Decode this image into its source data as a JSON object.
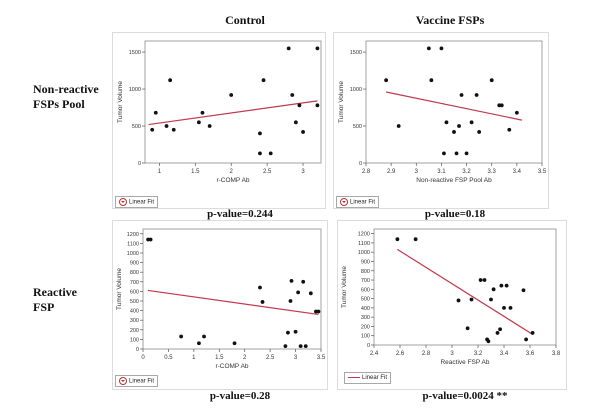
{
  "headers": {
    "col_control": "Control",
    "col_vaccine": "Vaccine FSPs",
    "row_nonreactive_line1": "Non-reactive",
    "row_nonreactive_line2": "FSPs Pool",
    "row_reactive_line1": "Reactive",
    "row_reactive_line2": "FSP"
  },
  "legend_label": "Linear Fit",
  "colors": {
    "fit_line": "#c0394b",
    "points": "#111111",
    "axis": "#555555"
  },
  "chart_data": [
    {
      "id": "tl",
      "type": "scatter",
      "xlabel": "r-COMP Ab",
      "ylabel": "Tumor Volume",
      "xlim": [
        0.8,
        3.25
      ],
      "ylim": [
        0,
        1650
      ],
      "xticks": [
        1,
        1.5,
        2,
        2.5,
        3
      ],
      "xtick_labels": [
        "1",
        "1.5",
        "2",
        "2.5",
        "3"
      ],
      "yticks": [
        0,
        500,
        1000,
        1500
      ],
      "ytick_labels": [
        "0",
        "500",
        "1000",
        "1500"
      ],
      "points": [
        [
          0.9,
          450
        ],
        [
          0.95,
          680
        ],
        [
          1.1,
          500
        ],
        [
          1.15,
          1120
        ],
        [
          1.2,
          450
        ],
        [
          1.55,
          550
        ],
        [
          1.6,
          680
        ],
        [
          1.7,
          500
        ],
        [
          2.0,
          920
        ],
        [
          2.4,
          400
        ],
        [
          2.4,
          130
        ],
        [
          2.45,
          1120
        ],
        [
          2.55,
          130
        ],
        [
          2.8,
          1550
        ],
        [
          2.85,
          920
        ],
        [
          2.9,
          550
        ],
        [
          2.95,
          780
        ],
        [
          3.0,
          420
        ],
        [
          3.2,
          1550
        ],
        [
          3.2,
          780
        ]
      ],
      "fit": [
        [
          0.85,
          520
        ],
        [
          3.2,
          840
        ]
      ],
      "pvalue": "p-value=0.244",
      "grid": false
    },
    {
      "id": "tr",
      "type": "scatter",
      "xlabel": "Non-reactive FSP Pool Ab",
      "ylabel": "Tumor Volume",
      "xlim": [
        2.8,
        3.5
      ],
      "ylim": [
        0,
        1650
      ],
      "xticks": [
        2.8,
        2.9,
        3,
        3.1,
        3.2,
        3.3,
        3.4,
        3.5
      ],
      "xtick_labels": [
        "2.8",
        "2.9",
        "3",
        "3.1",
        "3.2",
        "3.3",
        "3.4",
        "3.5"
      ],
      "yticks": [
        0,
        500,
        1000,
        1500
      ],
      "ytick_labels": [
        "0",
        "500",
        "1000",
        "1500"
      ],
      "points": [
        [
          2.88,
          1120
        ],
        [
          2.93,
          500
        ],
        [
          3.05,
          1550
        ],
        [
          3.06,
          1120
        ],
        [
          3.1,
          1550
        ],
        [
          3.11,
          130
        ],
        [
          3.12,
          550
        ],
        [
          3.15,
          420
        ],
        [
          3.16,
          130
        ],
        [
          3.17,
          500
        ],
        [
          3.18,
          920
        ],
        [
          3.2,
          130
        ],
        [
          3.22,
          550
        ],
        [
          3.24,
          920
        ],
        [
          3.25,
          420
        ],
        [
          3.3,
          1120
        ],
        [
          3.33,
          780
        ],
        [
          3.34,
          780
        ],
        [
          3.37,
          450
        ],
        [
          3.4,
          680
        ]
      ],
      "fit": [
        [
          2.88,
          960
        ],
        [
          3.42,
          580
        ]
      ],
      "pvalue": "p-value=0.18",
      "grid": false
    },
    {
      "id": "bl",
      "type": "scatter",
      "xlabel": "r-COMP Ab",
      "ylabel": "Tumor Volume",
      "xlim": [
        0,
        3.5
      ],
      "ylim": [
        0,
        1250
      ],
      "xticks": [
        0,
        0.5,
        1,
        1.5,
        2,
        2.5,
        3,
        3.5
      ],
      "xtick_labels": [
        "0",
        "0.5",
        "1",
        "1.5",
        "2",
        "2.5",
        "3",
        "3.5"
      ],
      "yticks": [
        0,
        100,
        200,
        300,
        400,
        500,
        600,
        700,
        800,
        900,
        1000,
        1100,
        1200
      ],
      "ytick_labels": [
        "0",
        "100",
        "200",
        "300",
        "400",
        "500",
        "600",
        "700",
        "800",
        "900",
        "1000",
        "1100",
        "1200"
      ],
      "points": [
        [
          0.1,
          1140
        ],
        [
          0.15,
          1140
        ],
        [
          0.75,
          130
        ],
        [
          1.1,
          60
        ],
        [
          1.2,
          130
        ],
        [
          1.8,
          60
        ],
        [
          2.3,
          640
        ],
        [
          2.35,
          490
        ],
        [
          2.8,
          30
        ],
        [
          2.85,
          170
        ],
        [
          2.9,
          500
        ],
        [
          2.92,
          710
        ],
        [
          3.0,
          180
        ],
        [
          3.05,
          590
        ],
        [
          3.1,
          30
        ],
        [
          3.15,
          700
        ],
        [
          3.2,
          30
        ],
        [
          3.3,
          580
        ],
        [
          3.4,
          390
        ],
        [
          3.45,
          390
        ]
      ],
      "fit": [
        [
          0.1,
          610
        ],
        [
          3.45,
          360
        ]
      ],
      "pvalue": "p-value=0.28",
      "grid": false
    },
    {
      "id": "br",
      "type": "scatter",
      "xlabel": "Reactive FSP Ab",
      "ylabel": "Tumor Volume",
      "xlim": [
        2.4,
        3.8
      ],
      "ylim": [
        0,
        1250
      ],
      "xticks": [
        2.4,
        2.6,
        2.8,
        3,
        3.2,
        3.4,
        3.6,
        3.8
      ],
      "xtick_labels": [
        "2.4",
        "2.6",
        "2.8",
        "3",
        "3.2",
        "3.4",
        "3.6",
        "3.8"
      ],
      "yticks": [
        0,
        100,
        200,
        300,
        400,
        500,
        600,
        700,
        800,
        900,
        1000,
        1100,
        1200
      ],
      "ytick_labels": [
        "0",
        "100",
        "200",
        "300",
        "400",
        "500",
        "600",
        "700",
        "800",
        "900",
        "1000",
        "1100",
        "1200"
      ],
      "points": [
        [
          2.58,
          1140
        ],
        [
          2.72,
          1140
        ],
        [
          3.05,
          480
        ],
        [
          3.12,
          180
        ],
        [
          3.15,
          490
        ],
        [
          3.22,
          700
        ],
        [
          3.25,
          700
        ],
        [
          3.27,
          60
        ],
        [
          3.28,
          40
        ],
        [
          3.3,
          490
        ],
        [
          3.32,
          600
        ],
        [
          3.35,
          130
        ],
        [
          3.37,
          170
        ],
        [
          3.38,
          640
        ],
        [
          3.4,
          400
        ],
        [
          3.42,
          640
        ],
        [
          3.45,
          400
        ],
        [
          3.55,
          590
        ],
        [
          3.57,
          60
        ],
        [
          3.62,
          130
        ]
      ],
      "fit": [
        [
          2.58,
          1030
        ],
        [
          3.62,
          115
        ]
      ],
      "pvalue": "p-value=0.0024 **",
      "grid": false
    }
  ]
}
